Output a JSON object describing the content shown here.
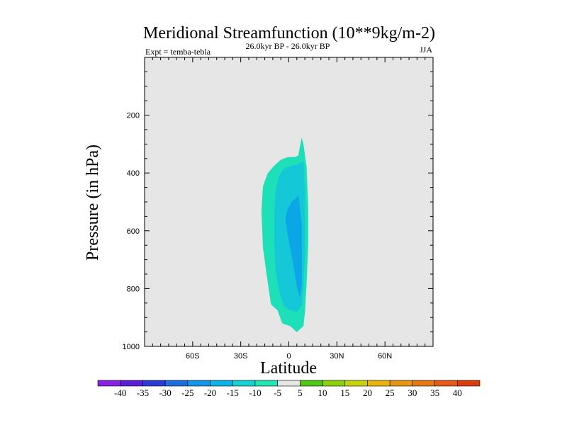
{
  "chart_data": {
    "type": "contour",
    "title": "Meridional Streamfunction (10**9kg/m-2)",
    "subtitle": "26.0kyr BP - 26.0kyr BP",
    "left_label": "Expt = temba-tebla",
    "right_label": "JJA",
    "xlabel": "Latitude",
    "ylabel": "Pressure (in hPa)",
    "xlim": [
      -90,
      90
    ],
    "ylim": [
      0,
      1000
    ],
    "y_inverted": true,
    "x_ticks": [
      {
        "value": -60,
        "label": "60S"
      },
      {
        "value": -30,
        "label": "30S"
      },
      {
        "value": 0,
        "label": "0"
      },
      {
        "value": 30,
        "label": "30N"
      },
      {
        "value": 60,
        "label": "60N"
      }
    ],
    "y_ticks": [
      {
        "value": 200,
        "label": "200"
      },
      {
        "value": 400,
        "label": "400"
      },
      {
        "value": 600,
        "label": "600"
      },
      {
        "value": 800,
        "label": "800"
      },
      {
        "value": 1000,
        "label": "1000"
      }
    ],
    "background_color": "#e6e6e6",
    "contours": [
      {
        "level_range": "-10 to -5",
        "color": "#1ee0b8",
        "outline": [
          [
            8,
            280
          ],
          [
            6,
            340
          ],
          [
            4,
            345
          ],
          [
            -1,
            346
          ],
          [
            -5,
            355
          ],
          [
            -9,
            375
          ],
          [
            -13,
            400
          ],
          [
            -16,
            445
          ],
          [
            -17,
            530
          ],
          [
            -16,
            660
          ],
          [
            -13,
            780
          ],
          [
            -11,
            855
          ],
          [
            -7,
            875
          ],
          [
            -4,
            920
          ],
          [
            1,
            930
          ],
          [
            4,
            945
          ],
          [
            5,
            950
          ],
          [
            7,
            940
          ],
          [
            9,
            930
          ],
          [
            10,
            880
          ],
          [
            11,
            780
          ],
          [
            12,
            650
          ],
          [
            12,
            520
          ],
          [
            11,
            380
          ],
          [
            10,
            340
          ],
          [
            9,
            300
          ]
        ]
      },
      {
        "level_range": "-15 to -10",
        "color": "#14c8d8",
        "outline": [
          [
            9,
            360
          ],
          [
            6,
            370
          ],
          [
            2,
            375
          ],
          [
            -3,
            385
          ],
          [
            -6,
            410
          ],
          [
            -8,
            460
          ],
          [
            -9,
            540
          ],
          [
            -9,
            640
          ],
          [
            -8,
            740
          ],
          [
            -6,
            810
          ],
          [
            -3,
            860
          ],
          [
            1,
            875
          ],
          [
            5,
            880
          ],
          [
            8,
            860
          ],
          [
            9,
            790
          ],
          [
            10,
            680
          ],
          [
            10,
            560
          ],
          [
            10,
            460
          ]
        ]
      },
      {
        "level_range": "-20 to -15",
        "color": "#0aa6e6",
        "outline": [
          [
            6,
            480
          ],
          [
            2,
            500
          ],
          [
            -1,
            530
          ],
          [
            -2,
            560
          ],
          [
            -1,
            600
          ],
          [
            1,
            660
          ],
          [
            3,
            720
          ],
          [
            5,
            790
          ],
          [
            7,
            830
          ],
          [
            8,
            780
          ],
          [
            8,
            680
          ],
          [
            8,
            580
          ]
        ]
      }
    ],
    "colorbar": {
      "labels": [
        "-40",
        "-35",
        "-30",
        "-25",
        "-20",
        "-15",
        "-10",
        "-5",
        "5",
        "10",
        "15",
        "20",
        "25",
        "30",
        "35",
        "40"
      ],
      "colors": [
        "#8a22e6",
        "#5a1fd6",
        "#2a3cd8",
        "#1e6ee0",
        "#1496e6",
        "#0ab4e6",
        "#14d2d2",
        "#1ee6b4",
        "#e6e6e6",
        "#4ec814",
        "#8cd20a",
        "#c8d20a",
        "#e6b40a",
        "#e69614",
        "#e67814",
        "#e65a14",
        "#dc3c0a"
      ]
    }
  }
}
